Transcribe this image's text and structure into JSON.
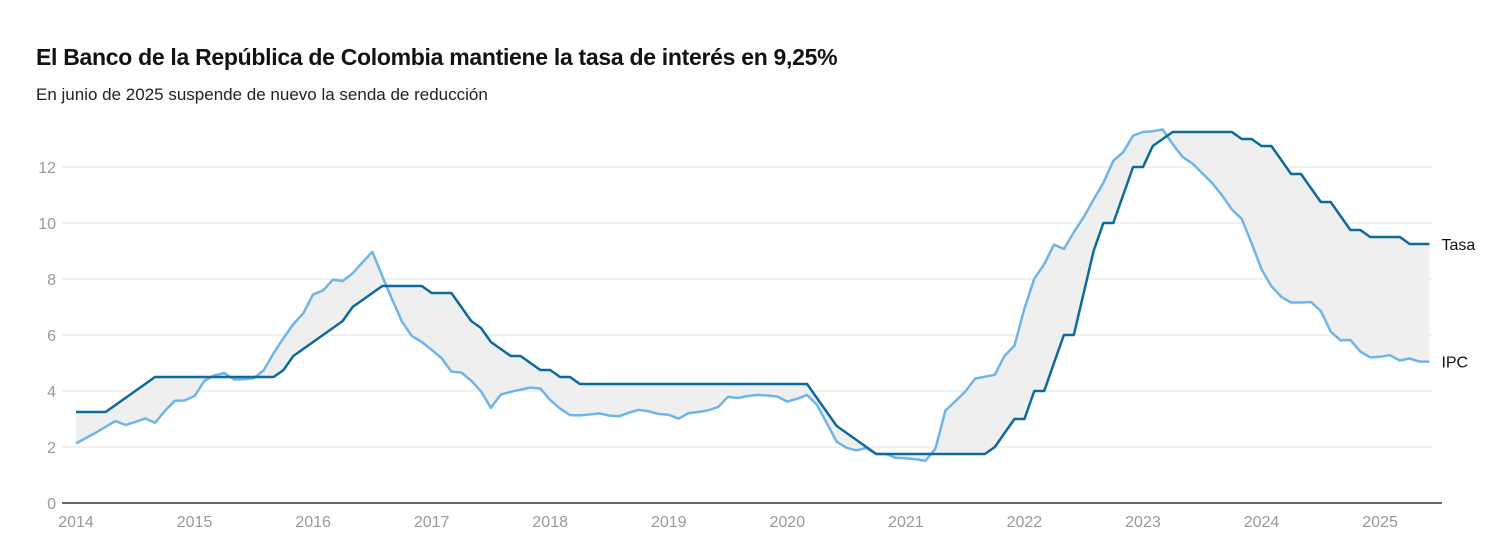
{
  "header": {
    "title": "El Banco de la República de Colombia mantiene la tasa de interés en 9,25%",
    "subtitle": "En junio de 2025 suspende de nuevo la senda de reducción"
  },
  "colors": {
    "tasa": "#0e6a9a",
    "ipc": "#6fb5e8",
    "band": "#efefef",
    "grid": "#e3e3e3",
    "axis": "#333333",
    "tick": "#999999"
  },
  "chart_data": {
    "type": "line",
    "title": "El Banco de la República de Colombia mantiene la tasa de interés en 9,25%",
    "subtitle": "En junio de 2025 suspende de nuevo la senda de reducción",
    "xlabel": "",
    "ylabel": "",
    "x_unit": "monthly, January 2014 to June 2025",
    "x_start": "2014-01",
    "xlim": [
      "2014-01",
      "2025-06"
    ],
    "ylim": [
      0,
      13.5
    ],
    "yticks": [
      0,
      2,
      4,
      6,
      8,
      10,
      12
    ],
    "ytick_labels": [
      "0",
      "2",
      "4",
      "6",
      "8",
      "10",
      "12"
    ],
    "xticks": [
      2014,
      2015,
      2016,
      2017,
      2018,
      2019,
      2020,
      2021,
      2022,
      2023,
      2024,
      2025
    ],
    "xtick_labels": [
      "2014",
      "2015",
      "2016",
      "2017",
      "2018",
      "2019",
      "2020",
      "2021",
      "2022",
      "2023",
      "2024",
      "2025"
    ],
    "grid": true,
    "legend": "direct labels at right end of lines",
    "band_between_series": true,
    "series": [
      {
        "name": "Tasa",
        "values": [
          3.25,
          3.25,
          3.25,
          3.25,
          3.5,
          3.75,
          4.0,
          4.25,
          4.5,
          4.5,
          4.5,
          4.5,
          4.5,
          4.5,
          4.5,
          4.5,
          4.5,
          4.5,
          4.5,
          4.5,
          4.5,
          4.75,
          5.25,
          5.5,
          5.75,
          6.0,
          6.25,
          6.5,
          7.0,
          7.25,
          7.5,
          7.75,
          7.75,
          7.75,
          7.75,
          7.75,
          7.5,
          7.5,
          7.5,
          7.0,
          6.5,
          6.25,
          5.75,
          5.5,
          5.25,
          5.25,
          5.0,
          4.75,
          4.75,
          4.5,
          4.5,
          4.25,
          4.25,
          4.25,
          4.25,
          4.25,
          4.25,
          4.25,
          4.25,
          4.25,
          4.25,
          4.25,
          4.25,
          4.25,
          4.25,
          4.25,
          4.25,
          4.25,
          4.25,
          4.25,
          4.25,
          4.25,
          4.25,
          4.25,
          4.25,
          3.75,
          3.25,
          2.75,
          2.5,
          2.25,
          2.0,
          1.75,
          1.75,
          1.75,
          1.75,
          1.75,
          1.75,
          1.75,
          1.75,
          1.75,
          1.75,
          1.75,
          1.75,
          2.0,
          2.5,
          3.0,
          3.0,
          4.0,
          4.0,
          5.0,
          6.0,
          6.0,
          7.5,
          9.0,
          10.0,
          10.0,
          11.0,
          12.0,
          12.0,
          12.75,
          13.0,
          13.25,
          13.25,
          13.25,
          13.25,
          13.25,
          13.25,
          13.25,
          13.0,
          13.0,
          12.75,
          12.75,
          12.25,
          11.75,
          11.75,
          11.25,
          10.75,
          10.75,
          10.25,
          9.75,
          9.75,
          9.5,
          9.5,
          9.5,
          9.5,
          9.25,
          9.25,
          9.25
        ]
      },
      {
        "name": "IPC",
        "values": [
          2.13,
          2.32,
          2.51,
          2.72,
          2.93,
          2.79,
          2.89,
          3.02,
          2.86,
          3.29,
          3.65,
          3.66,
          3.82,
          4.36,
          4.56,
          4.64,
          4.41,
          4.42,
          4.46,
          4.74,
          5.35,
          5.89,
          6.39,
          6.77,
          7.45,
          7.59,
          7.98,
          7.93,
          8.2,
          8.6,
          8.97,
          8.1,
          7.27,
          6.48,
          5.96,
          5.75,
          5.47,
          5.18,
          4.69,
          4.66,
          4.37,
          3.99,
          3.4,
          3.87,
          3.97,
          4.05,
          4.12,
          4.09,
          3.68,
          3.37,
          3.14,
          3.13,
          3.16,
          3.2,
          3.12,
          3.1,
          3.23,
          3.33,
          3.27,
          3.18,
          3.15,
          3.01,
          3.21,
          3.25,
          3.31,
          3.43,
          3.79,
          3.75,
          3.82,
          3.86,
          3.84,
          3.8,
          3.62,
          3.72,
          3.86,
          3.51,
          2.85,
          2.19,
          1.97,
          1.88,
          1.97,
          1.75,
          1.75,
          1.61,
          1.6,
          1.56,
          1.51,
          1.95,
          3.3,
          3.63,
          3.97,
          4.44,
          4.51,
          4.58,
          5.26,
          5.62,
          6.94,
          8.01,
          8.53,
          9.23,
          9.07,
          9.67,
          10.21,
          10.84,
          11.44,
          12.22,
          12.53,
          13.12,
          13.25,
          13.28,
          13.34,
          12.82,
          12.36,
          12.13,
          11.78,
          11.43,
          10.99,
          10.48,
          10.15,
          9.28,
          8.35,
          7.74,
          7.36,
          7.16,
          7.16,
          7.18,
          6.86,
          6.12,
          5.81,
          5.82,
          5.41,
          5.2,
          5.22,
          5.28,
          5.09,
          5.16,
          5.05,
          5.05
        ]
      }
    ],
    "end_labels": {
      "tasa": "Tasa",
      "ipc": "IPC"
    }
  }
}
